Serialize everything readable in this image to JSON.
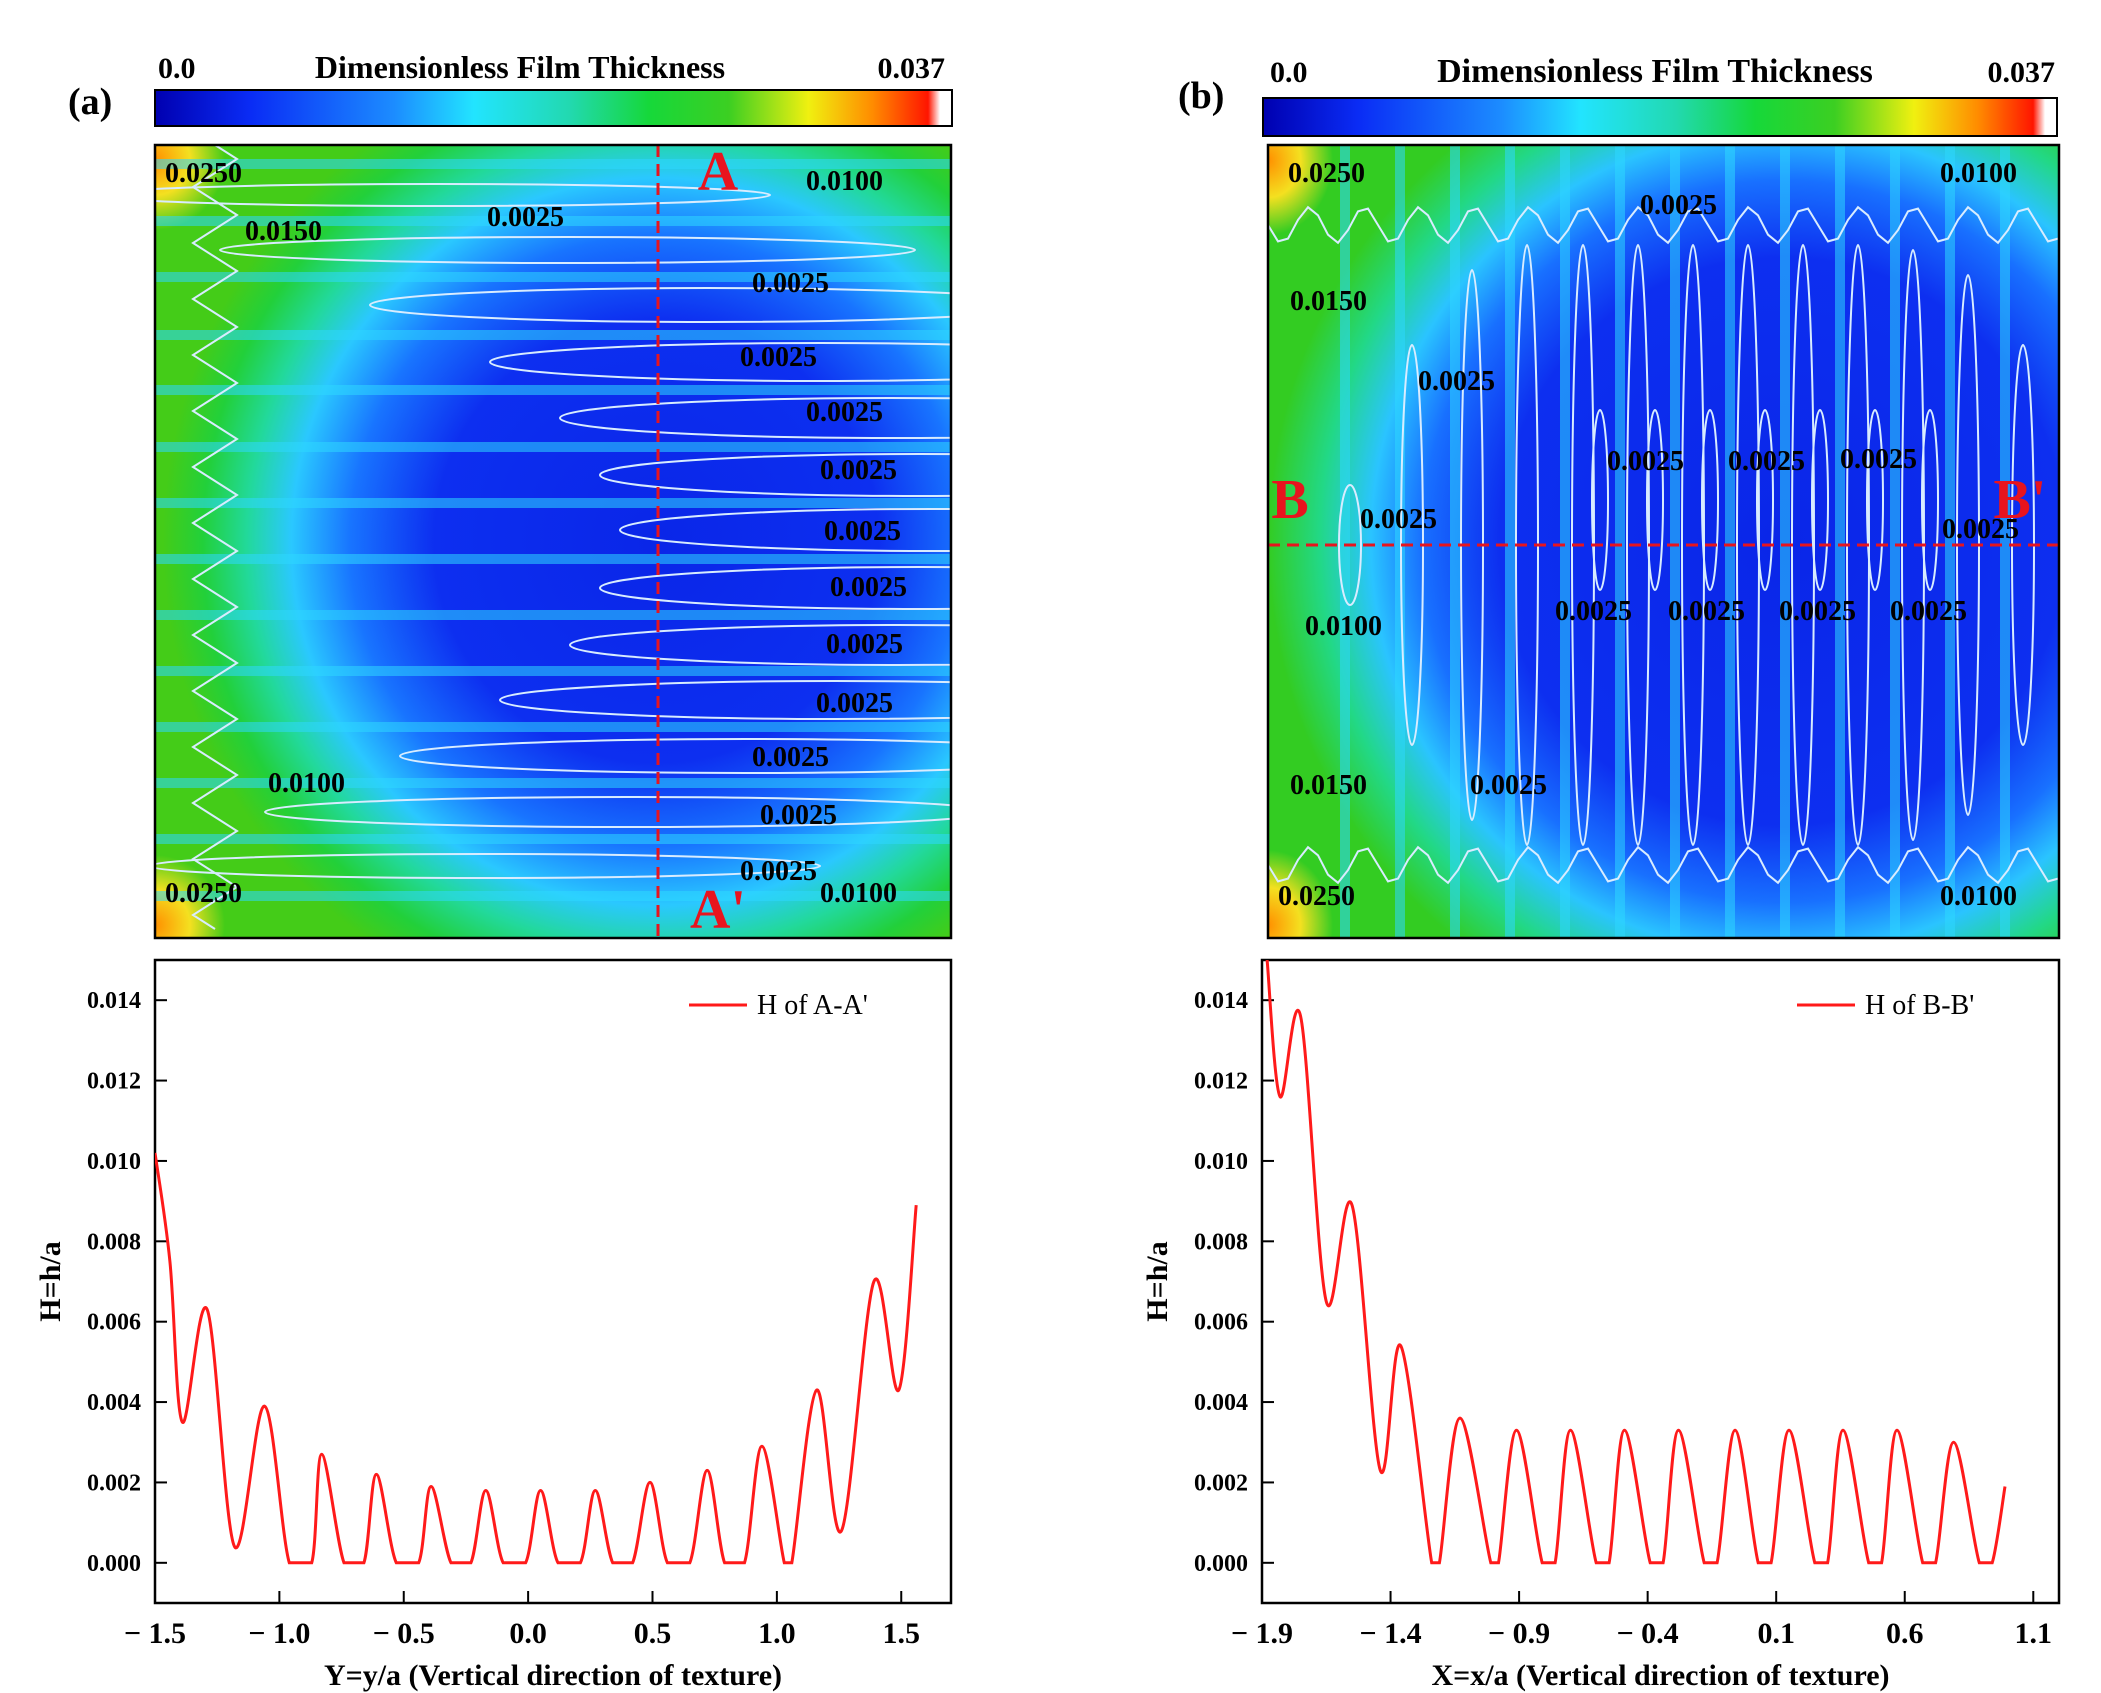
{
  "colors": {
    "curve": "#ff1a1a",
    "marker": "#e8141e",
    "contour": "#d8ecff",
    "axis": "#000000"
  },
  "panels": [
    {
      "id": "a",
      "panel_label": "(a)",
      "colorbar": {
        "min_label": "0.0",
        "title": "Dimensionless Film Thickness",
        "max_label": "0.037"
      },
      "section_markers": {
        "start": "A",
        "end": "A'",
        "orientation": "vertical"
      },
      "contour_labels": [
        "0.0250",
        "0.0100",
        "0.0150",
        "0.0025",
        "0.0025",
        "0.0025",
        "0.0025",
        "0.0025",
        "0.0025",
        "0.0025",
        "0.0025",
        "0.0025",
        "0.0025",
        "0.0025",
        "0.0025",
        "0.0100",
        "0.0250",
        "0.0100"
      ]
    },
    {
      "id": "b",
      "panel_label": "(b)",
      "colorbar": {
        "min_label": "0.0",
        "title": "Dimensionless Film Thickness",
        "max_label": "0.037"
      },
      "section_markers": {
        "start": "B",
        "end": "B'",
        "orientation": "horizontal"
      },
      "contour_labels": [
        "0.0250",
        "0.0100",
        "0.0025",
        "0.0150",
        "0.0025",
        "0.0025",
        "0.0025",
        "0.0025",
        "0.0025",
        "0.0025",
        "0.0100",
        "0.0025",
        "0.0025",
        "0.0025",
        "0.0025",
        "0.0150",
        "0.0025",
        "0.0250",
        "0.0100"
      ]
    }
  ],
  "chart_data": [
    {
      "type": "line",
      "panel": "a",
      "series": [
        {
          "name": "H of A-A'",
          "points": [
            [
              -1.5,
              0.0102
            ],
            [
              -1.44,
              0.0075
            ],
            [
              -1.39,
              0.0035
            ],
            [
              -1.29,
              0.0063
            ],
            [
              -1.18,
              0.0004
            ],
            [
              -1.06,
              0.0039
            ],
            [
              -0.96,
              0.0
            ],
            [
              -0.87,
              0.0
            ],
            [
              -0.83,
              0.0027
            ],
            [
              -0.74,
              0.0
            ],
            [
              -0.66,
              0.0
            ],
            [
              -0.61,
              0.0022
            ],
            [
              -0.53,
              0.0
            ],
            [
              -0.44,
              0.0
            ],
            [
              -0.39,
              0.0019
            ],
            [
              -0.31,
              0.0
            ],
            [
              -0.23,
              0.0
            ],
            [
              -0.17,
              0.0018
            ],
            [
              -0.1,
              0.0
            ],
            [
              -0.01,
              0.0
            ],
            [
              0.05,
              0.0018
            ],
            [
              0.12,
              0.0
            ],
            [
              0.21,
              0.0
            ],
            [
              0.27,
              0.0018
            ],
            [
              0.34,
              0.0
            ],
            [
              0.42,
              0.0
            ],
            [
              0.49,
              0.002
            ],
            [
              0.56,
              0.0
            ],
            [
              0.65,
              0.0
            ],
            [
              0.72,
              0.0023
            ],
            [
              0.79,
              0.0
            ],
            [
              0.87,
              0.0
            ],
            [
              0.94,
              0.0029
            ],
            [
              1.03,
              0.0
            ],
            [
              1.06,
              0.0
            ],
            [
              1.16,
              0.0043
            ],
            [
              1.26,
              0.0008
            ],
            [
              1.39,
              0.007
            ],
            [
              1.49,
              0.0043
            ],
            [
              1.56,
              0.0089
            ]
          ]
        }
      ],
      "title": "",
      "xlabel": "Y=y/a (Vertical direction of texture)",
      "ylabel": "H=h/a",
      "xlim": [
        -1.5,
        1.7
      ],
      "ylim": [
        -0.001,
        0.015
      ],
      "xticks": [
        -1.5,
        -1.0,
        -0.5,
        0.0,
        0.5,
        1.0,
        1.5
      ],
      "xtick_labels": [
        "− 1.5",
        "− 1.0",
        "− 0.5",
        "0.0",
        "0.5",
        "1.0",
        "1.5"
      ],
      "yticks": [
        0.0,
        0.002,
        0.004,
        0.006,
        0.008,
        0.01,
        0.012,
        0.014
      ],
      "ytick_labels": [
        "0.000",
        "0.002",
        "0.004",
        "0.006",
        "0.008",
        "0.010",
        "0.012",
        "0.014"
      ],
      "legend": "top-right",
      "grid": false
    },
    {
      "type": "line",
      "panel": "b",
      "series": [
        {
          "name": "H of B-B'",
          "points": [
            [
              -1.88,
              0.015
            ],
            [
              -1.83,
              0.0116
            ],
            [
              -1.75,
              0.0136
            ],
            [
              -1.65,
              0.0065
            ],
            [
              -1.55,
              0.0089
            ],
            [
              -1.44,
              0.0023
            ],
            [
              -1.36,
              0.0054
            ],
            [
              -1.24,
              0.0
            ],
            [
              -1.21,
              0.0
            ],
            [
              -1.13,
              0.0036
            ],
            [
              -1.01,
              0.0
            ],
            [
              -0.98,
              0.0
            ],
            [
              -0.91,
              0.0033
            ],
            [
              -0.81,
              0.0
            ],
            [
              -0.76,
              0.0
            ],
            [
              -0.7,
              0.0033
            ],
            [
              -0.6,
              0.0
            ],
            [
              -0.55,
              0.0
            ],
            [
              -0.49,
              0.0033
            ],
            [
              -0.39,
              0.0
            ],
            [
              -0.34,
              0.0
            ],
            [
              -0.28,
              0.0033
            ],
            [
              -0.18,
              0.0
            ],
            [
              -0.13,
              0.0
            ],
            [
              -0.06,
              0.0033
            ],
            [
              0.03,
              0.0
            ],
            [
              0.08,
              0.0
            ],
            [
              0.15,
              0.0033
            ],
            [
              0.25,
              0.0
            ],
            [
              0.3,
              0.0
            ],
            [
              0.36,
              0.0033
            ],
            [
              0.46,
              0.0
            ],
            [
              0.51,
              0.0
            ],
            [
              0.57,
              0.0033
            ],
            [
              0.67,
              0.0
            ],
            [
              0.72,
              0.0
            ],
            [
              0.79,
              0.003
            ],
            [
              0.89,
              0.0
            ],
            [
              0.94,
              0.0
            ],
            [
              0.99,
              0.0019
            ]
          ]
        }
      ],
      "title": "",
      "xlabel": "X=x/a (Vertical direction of texture)",
      "ylabel": "H=h/a",
      "xlim": [
        -1.9,
        1.2
      ],
      "ylim": [
        -0.001,
        0.015
      ],
      "xticks": [
        -1.9,
        -1.4,
        -0.9,
        -0.4,
        0.1,
        0.6,
        1.1
      ],
      "xtick_labels": [
        "− 1.9",
        "− 1.4",
        "− 0.9",
        "− 0.4",
        "0.1",
        "0.6",
        "1.1"
      ],
      "yticks": [
        0.0,
        0.002,
        0.004,
        0.006,
        0.008,
        0.01,
        0.012,
        0.014
      ],
      "ytick_labels": [
        "0.000",
        "0.002",
        "0.004",
        "0.006",
        "0.008",
        "0.010",
        "0.012",
        "0.014"
      ],
      "legend": "top-right",
      "grid": false
    }
  ]
}
